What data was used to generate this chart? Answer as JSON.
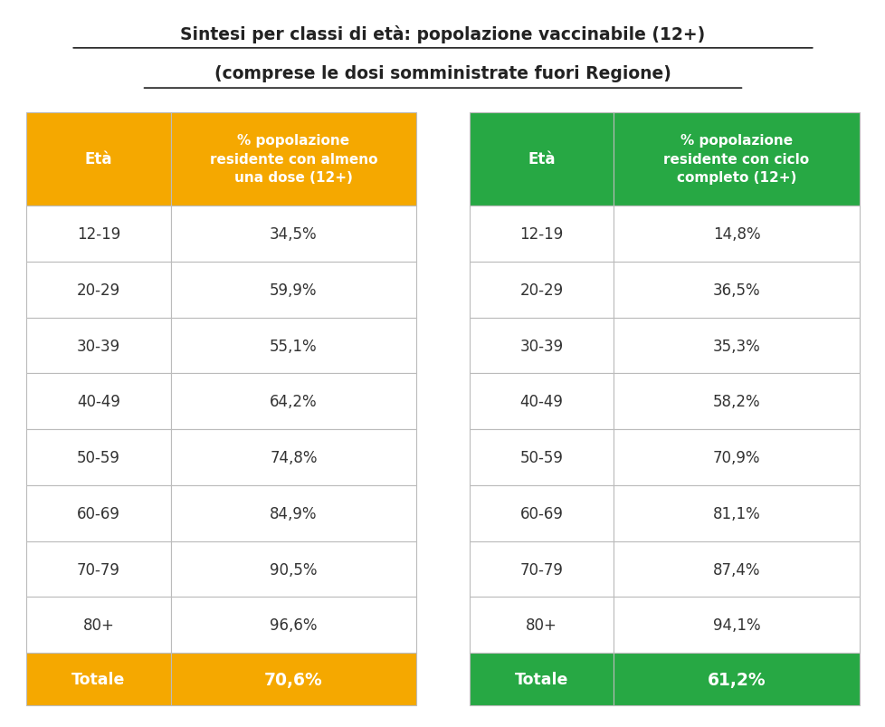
{
  "title_line1": "Sintesi per classi di età: popolazione vaccinabile (12+)",
  "title_line2": "(comprese le dosi somministrate fuori Regione)",
  "left_table": {
    "header": [
      "Età",
      "% popolazione\nresidente con almeno\nuna dose (12+)"
    ],
    "rows": [
      [
        "12-19",
        "34,5%"
      ],
      [
        "20-29",
        "59,9%"
      ],
      [
        "30-39",
        "55,1%"
      ],
      [
        "40-49",
        "64,2%"
      ],
      [
        "50-59",
        "74,8%"
      ],
      [
        "60-69",
        "84,9%"
      ],
      [
        "70-79",
        "90,5%"
      ],
      [
        "80+",
        "96,6%"
      ]
    ],
    "footer": [
      "Totale",
      "70,6%"
    ],
    "header_color": "#F5A800",
    "footer_color": "#F5A800",
    "border_color": "#BBBBBB",
    "header_text_color": "#FFFFFF",
    "footer_text_color": "#FFFFFF",
    "row_text_color": "#333333"
  },
  "right_table": {
    "header": [
      "Età",
      "% popolazione\nresidente con ciclo\ncompleto (12+)"
    ],
    "rows": [
      [
        "12-19",
        "14,8%"
      ],
      [
        "20-29",
        "36,5%"
      ],
      [
        "30-39",
        "35,3%"
      ],
      [
        "40-49",
        "58,2%"
      ],
      [
        "50-59",
        "70,9%"
      ],
      [
        "60-69",
        "81,1%"
      ],
      [
        "70-79",
        "87,4%"
      ],
      [
        "80+",
        "94,1%"
      ]
    ],
    "footer": [
      "Totale",
      "61,2%"
    ],
    "header_color": "#27A844",
    "footer_color": "#27A844",
    "border_color": "#BBBBBB",
    "header_text_color": "#FFFFFF",
    "footer_text_color": "#FFFFFF",
    "row_text_color": "#333333"
  },
  "bg_color": "#FFFFFF"
}
